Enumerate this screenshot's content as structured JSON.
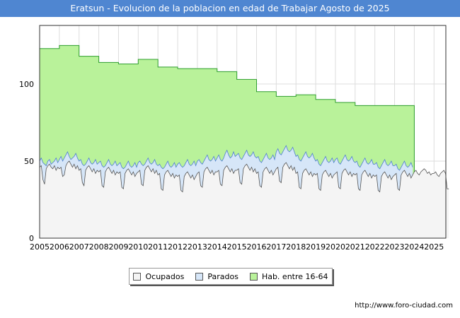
{
  "header": {
    "title": "Eratsun - Evolucion de la poblacion en edad de Trabajar Agosto de 2025"
  },
  "source": "http://www.foro-ciudad.com",
  "chart_data": {
    "type": "area",
    "title": "Eratsun - Evolucion de la poblacion en edad de Trabajar Agosto de 2025",
    "x_ticks": [
      "2005",
      "2006",
      "2007",
      "2008",
      "2009",
      "2010",
      "2011",
      "2012",
      "2013",
      "2014",
      "2015",
      "2016",
      "2017",
      "2018",
      "2019",
      "2020",
      "2021",
      "2022",
      "2023",
      "2024",
      "2025"
    ],
    "y_ticks": [
      0,
      50,
      100
    ],
    "xlim": [
      2005,
      2025.6
    ],
    "ylim": [
      0,
      138
    ],
    "grid": true,
    "legend_position": "bottom",
    "series": [
      {
        "name": "Hab. entre 16-64",
        "color": "#b9f29a",
        "line": "#2f9e2f",
        "years": [
          2005,
          2006,
          2007,
          2008,
          2009,
          2010,
          2011,
          2012,
          2013,
          2014,
          2015,
          2016,
          2017,
          2018,
          2019,
          2020,
          2021,
          2022,
          2023
        ],
        "values": [
          123,
          125,
          118,
          114,
          113,
          116,
          111,
          110,
          110,
          108,
          103,
          95,
          92,
          93,
          90,
          88,
          86,
          86,
          86
        ]
      },
      {
        "name": "Parados",
        "color": "#d6e6f8",
        "line": "#4f7fd1",
        "monthly_start": 2005.0,
        "values": [
          50,
          52,
          49,
          48,
          47,
          50,
          51,
          48,
          49,
          50,
          52,
          49,
          51,
          53,
          50,
          52,
          54,
          56,
          53,
          51,
          52,
          53,
          55,
          52,
          50,
          51,
          48,
          47,
          48,
          50,
          52,
          49,
          48,
          49,
          51,
          48,
          49,
          50,
          47,
          46,
          47,
          49,
          51,
          48,
          47,
          48,
          50,
          47,
          48,
          49,
          46,
          45,
          46,
          48,
          50,
          47,
          46,
          47,
          49,
          46,
          49,
          50,
          48,
          47,
          48,
          50,
          52,
          49,
          48,
          49,
          51,
          48,
          47,
          48,
          46,
          45,
          46,
          48,
          50,
          47,
          46,
          47,
          49,
          46,
          48,
          49,
          47,
          46,
          47,
          49,
          51,
          48,
          47,
          48,
          50,
          47,
          50,
          51,
          49,
          48,
          50,
          52,
          54,
          51,
          50,
          51,
          53,
          50,
          52,
          54,
          51,
          50,
          52,
          55,
          57,
          54,
          52,
          53,
          56,
          53,
          54,
          55,
          52,
          51,
          53,
          55,
          57,
          54,
          53,
          54,
          56,
          53,
          52,
          53,
          50,
          49,
          51,
          53,
          55,
          52,
          51,
          52,
          54,
          51,
          56,
          58,
          55,
          54,
          56,
          58,
          60,
          57,
          56,
          57,
          59,
          56,
          53,
          54,
          51,
          50,
          52,
          54,
          56,
          53,
          52,
          53,
          55,
          52,
          50,
          51,
          48,
          47,
          49,
          51,
          53,
          50,
          49,
          50,
          52,
          49,
          51,
          52,
          49,
          48,
          50,
          52,
          54,
          51,
          50,
          51,
          53,
          50,
          49,
          50,
          47,
          46,
          48,
          50,
          52,
          49,
          48,
          49,
          51,
          48,
          48,
          49,
          46,
          45,
          47,
          49,
          51,
          48,
          47,
          48,
          50,
          47,
          47,
          48,
          45,
          44,
          46,
          48,
          50,
          47,
          46,
          47,
          49,
          46
        ]
      },
      {
        "name": "Ocupados",
        "color": "#f4f4f4",
        "line": "#555555",
        "monthly_start": 2005.0,
        "values": [
          46,
          47,
          38,
          35,
          45,
          47,
          48,
          46,
          45,
          47,
          44,
          46,
          45,
          46,
          40,
          41,
          47,
          49,
          50,
          48,
          46,
          48,
          45,
          47,
          44,
          45,
          36,
          34,
          44,
          46,
          47,
          45,
          43,
          45,
          42,
          44,
          43,
          44,
          34,
          33,
          43,
          45,
          46,
          44,
          42,
          44,
          41,
          43,
          42,
          43,
          33,
          32,
          42,
          44,
          45,
          43,
          41,
          43,
          40,
          42,
          43,
          44,
          35,
          34,
          44,
          46,
          47,
          45,
          43,
          45,
          42,
          44,
          41,
          42,
          32,
          31,
          41,
          43,
          44,
          42,
          40,
          42,
          39,
          41,
          40,
          41,
          31,
          30,
          40,
          42,
          43,
          41,
          39,
          41,
          38,
          40,
          42,
          43,
          34,
          33,
          43,
          45,
          46,
          44,
          42,
          44,
          41,
          43,
          43,
          44,
          35,
          34,
          44,
          46,
          47,
          45,
          43,
          45,
          42,
          44,
          44,
          45,
          36,
          35,
          45,
          47,
          48,
          46,
          44,
          46,
          43,
          45,
          42,
          43,
          34,
          33,
          43,
          45,
          46,
          44,
          42,
          44,
          41,
          43,
          45,
          46,
          37,
          36,
          46,
          48,
          49,
          47,
          45,
          47,
          44,
          46,
          42,
          43,
          33,
          32,
          42,
          44,
          45,
          43,
          41,
          43,
          40,
          42,
          41,
          42,
          32,
          31,
          41,
          43,
          44,
          42,
          40,
          42,
          39,
          41,
          42,
          43,
          33,
          32,
          42,
          44,
          45,
          43,
          41,
          43,
          40,
          42,
          41,
          42,
          32,
          31,
          41,
          43,
          44,
          42,
          40,
          42,
          39,
          41,
          40,
          41,
          31,
          30,
          40,
          42,
          43,
          41,
          39,
          41,
          38,
          40,
          41,
          42,
          32,
          31,
          41,
          43,
          44,
          42,
          40,
          42,
          39,
          41,
          43,
          44,
          42,
          41,
          43,
          44,
          45,
          44,
          42,
          43,
          41,
          42,
          42,
          43,
          41,
          40,
          42,
          43,
          44,
          42,
          32,
          32
        ]
      }
    ]
  }
}
